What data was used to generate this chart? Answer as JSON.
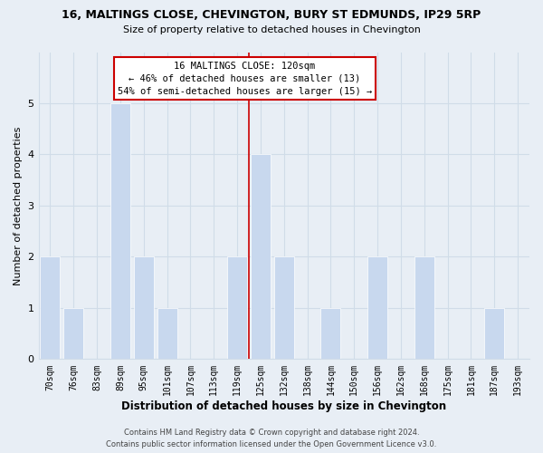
{
  "title": "16, MALTINGS CLOSE, CHEVINGTON, BURY ST EDMUNDS, IP29 5RP",
  "subtitle": "Size of property relative to detached houses in Chevington",
  "xlabel": "Distribution of detached houses by size in Chevington",
  "ylabel": "Number of detached properties",
  "footer_line1": "Contains HM Land Registry data © Crown copyright and database right 2024.",
  "footer_line2": "Contains public sector information licensed under the Open Government Licence v3.0.",
  "categories": [
    "70sqm",
    "76sqm",
    "83sqm",
    "89sqm",
    "95sqm",
    "101sqm",
    "107sqm",
    "113sqm",
    "119sqm",
    "125sqm",
    "132sqm",
    "138sqm",
    "144sqm",
    "150sqm",
    "156sqm",
    "162sqm",
    "168sqm",
    "175sqm",
    "181sqm",
    "187sqm",
    "193sqm"
  ],
  "values": [
    2,
    1,
    0,
    5,
    2,
    1,
    0,
    0,
    2,
    4,
    2,
    0,
    1,
    0,
    2,
    0,
    2,
    0,
    0,
    1,
    0
  ],
  "bar_color": "#c8d8ee",
  "bar_edge_color": "#ffffff",
  "reference_line_color": "#cc0000",
  "annotation_title": "16 MALTINGS CLOSE: 120sqm",
  "annotation_line1": "← 46% of detached houses are smaller (13)",
  "annotation_line2": "54% of semi-detached houses are larger (15) →",
  "annotation_box_color": "#ffffff",
  "annotation_box_edge_color": "#cc0000",
  "ylim": [
    0,
    6
  ],
  "yticks": [
    0,
    1,
    2,
    3,
    4,
    5,
    6
  ],
  "grid_color": "#d0dce8",
  "bg_color": "#e8eef5"
}
